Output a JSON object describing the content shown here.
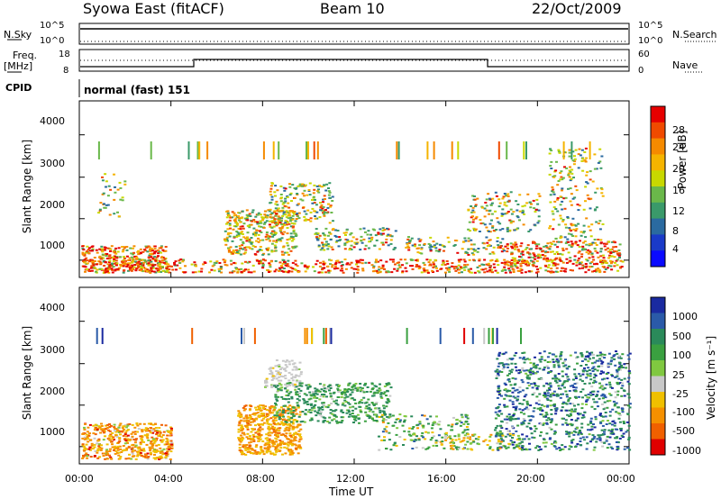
{
  "header": {
    "station": "Syowa East (fitACF)",
    "beam": "Beam 10",
    "date": "22/Oct/2009"
  },
  "top_panels": {
    "nsky_label": "N.Sky",
    "nsky_ticks": [
      "10^5",
      "10^0"
    ],
    "nsearch_label": "N.Search",
    "nsearch_ticks": [
      "10^5",
      "10^0"
    ],
    "freq_label_1": "Freq.",
    "freq_label_2": "[MHz]",
    "freq_ticks": [
      "18",
      "8"
    ],
    "nave_label": "Nave",
    "nave_ticks": [
      "60",
      "0"
    ],
    "cpid_label": "CPID",
    "cpid_value": "normal (fast) 151"
  },
  "chart_data": [
    {
      "type": "heatmap",
      "name": "power-panel",
      "ylabel": "Slant Range [km]",
      "ylim": [
        180,
        4500
      ],
      "y_ticks": [
        "4000",
        "3000",
        "2000",
        "1000"
      ],
      "x_ticks": [
        "00:00",
        "04:00",
        "08:00",
        "12:00",
        "16:00",
        "20:00",
        "00:00"
      ],
      "colorbar": {
        "label": "Power [dB]",
        "ticks": [
          "28",
          "24",
          "20",
          "16",
          "12",
          "8",
          "4"
        ],
        "colors": [
          "#e60000",
          "#f04a00",
          "#f58a00",
          "#f5b400",
          "#c8d800",
          "#6ab84a",
          "#3a9a6a",
          "#2a6aa0",
          "#1a3ac8",
          "#0a0aff"
        ]
      }
    },
    {
      "type": "heatmap",
      "name": "velocity-panel",
      "ylabel": "Slant Range [km]",
      "ylim": [
        180,
        4500
      ],
      "y_ticks": [
        "4000",
        "3000",
        "2000",
        "1000"
      ],
      "x_ticks": [
        "00:00",
        "04:00",
        "08:00",
        "12:00",
        "16:00",
        "20:00",
        "00:00"
      ],
      "xlabel": "Time UT",
      "colorbar": {
        "label": "Velocity [m s⁻¹]",
        "ticks": [
          "1000",
          "500",
          "100",
          "25",
          "-25",
          "-100",
          "-500",
          "-1000"
        ],
        "colors": [
          "#1a2aa0",
          "#2a5aa8",
          "#2a8a5a",
          "#3aa040",
          "#80c840",
          "#c8c8c8",
          "#f0c000",
          "#f59000",
          "#f06000",
          "#e00000"
        ]
      }
    }
  ]
}
